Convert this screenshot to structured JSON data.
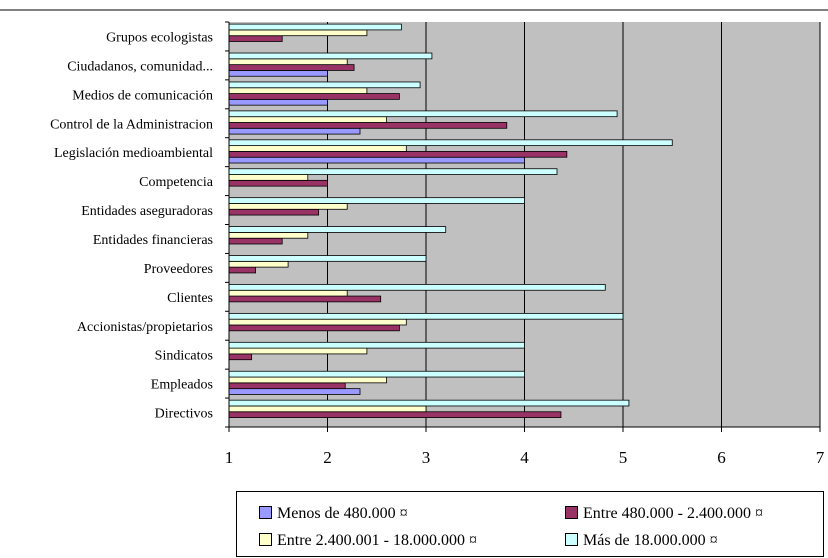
{
  "chart_data": {
    "type": "bar",
    "orientation": "horizontal",
    "categories": [
      "Grupos ecologistas",
      "Ciudadanos, comunidad...",
      "Medios de comunicación",
      "Control de la Administracion",
      "Legislación medioambiental",
      "Competencia",
      "Entidades aseguradoras",
      "Entidades financieras",
      "Proveedores",
      "Clientes",
      "Accionistas/propietarios",
      "Sindicatos",
      "Empleados",
      "Directivos"
    ],
    "series": [
      {
        "name": "Menos de 480.000 ¤",
        "color": "#9999ff",
        "values": [
          null,
          2.0,
          2.0,
          2.33,
          4.0,
          null,
          null,
          null,
          null,
          null,
          null,
          null,
          2.33,
          null
        ]
      },
      {
        "name": "Entre 480.000 - 2.400.000 ¤",
        "color": "#993366",
        "values": [
          1.54,
          2.27,
          2.73,
          3.82,
          4.43,
          2.0,
          1.91,
          1.54,
          1.27,
          2.54,
          2.73,
          1.23,
          2.18,
          4.37
        ]
      },
      {
        "name": "Entre 2.400.001 - 18.000.000 ¤",
        "color": "#ffffcc",
        "values": [
          2.4,
          2.2,
          2.4,
          2.6,
          2.8,
          1.8,
          2.2,
          1.8,
          1.6,
          2.2,
          2.8,
          2.4,
          2.6,
          3.0
        ]
      },
      {
        "name": "Más de 18.000.000 ¤",
        "color": "#ccffff",
        "values": [
          2.75,
          3.06,
          2.94,
          4.94,
          5.5,
          4.33,
          4.0,
          3.2,
          3.0,
          4.82,
          5.0,
          4.0,
          4.0,
          5.06
        ]
      }
    ],
    "xlim": [
      1,
      7
    ],
    "xticks": [
      1,
      2,
      3,
      4,
      5,
      6,
      7
    ],
    "grid": true,
    "plot_background": "#c0c0c0",
    "legend_position": "bottom"
  }
}
